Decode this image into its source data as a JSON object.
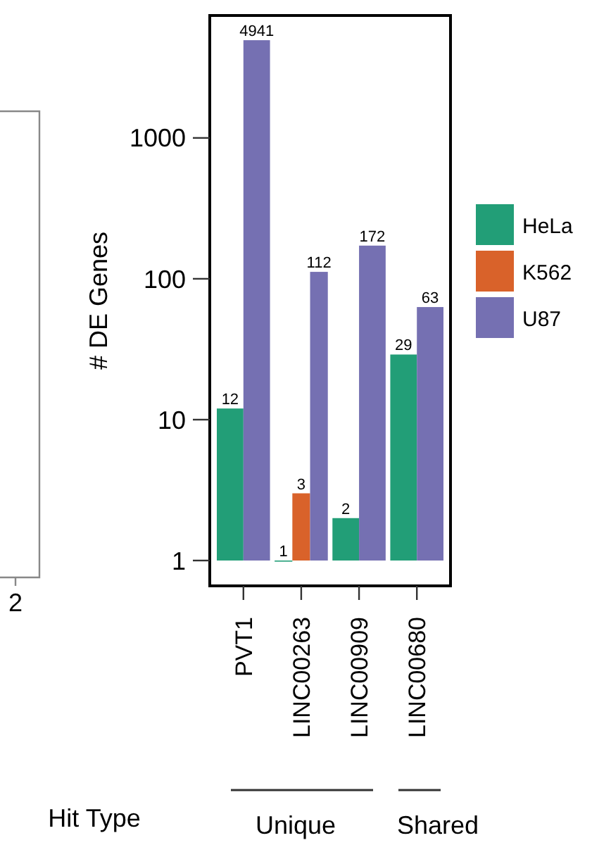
{
  "chart_data": {
    "type": "bar",
    "ylabel": "# DE Genes",
    "categories": [
      "PVT1",
      "LINC00263",
      "LINC00909",
      "LINC00680"
    ],
    "series": [
      {
        "name": "HeLa",
        "color": "#229e77",
        "values": [
          12,
          1,
          2,
          29
        ]
      },
      {
        "name": "K562",
        "color": "#d9622a",
        "values": [
          null,
          3,
          null,
          null
        ]
      },
      {
        "name": "U87",
        "color": "#7570b2",
        "values": [
          4941,
          112,
          172,
          63
        ]
      }
    ],
    "log": true,
    "ylim": [
      1,
      7400
    ],
    "yticks": [
      1,
      10,
      100,
      1000
    ],
    "data_labels": true,
    "grid": false,
    "legend": "right",
    "annotations": [
      "Unique",
      "Shared",
      "Hit Type",
      "2"
    ]
  }
}
